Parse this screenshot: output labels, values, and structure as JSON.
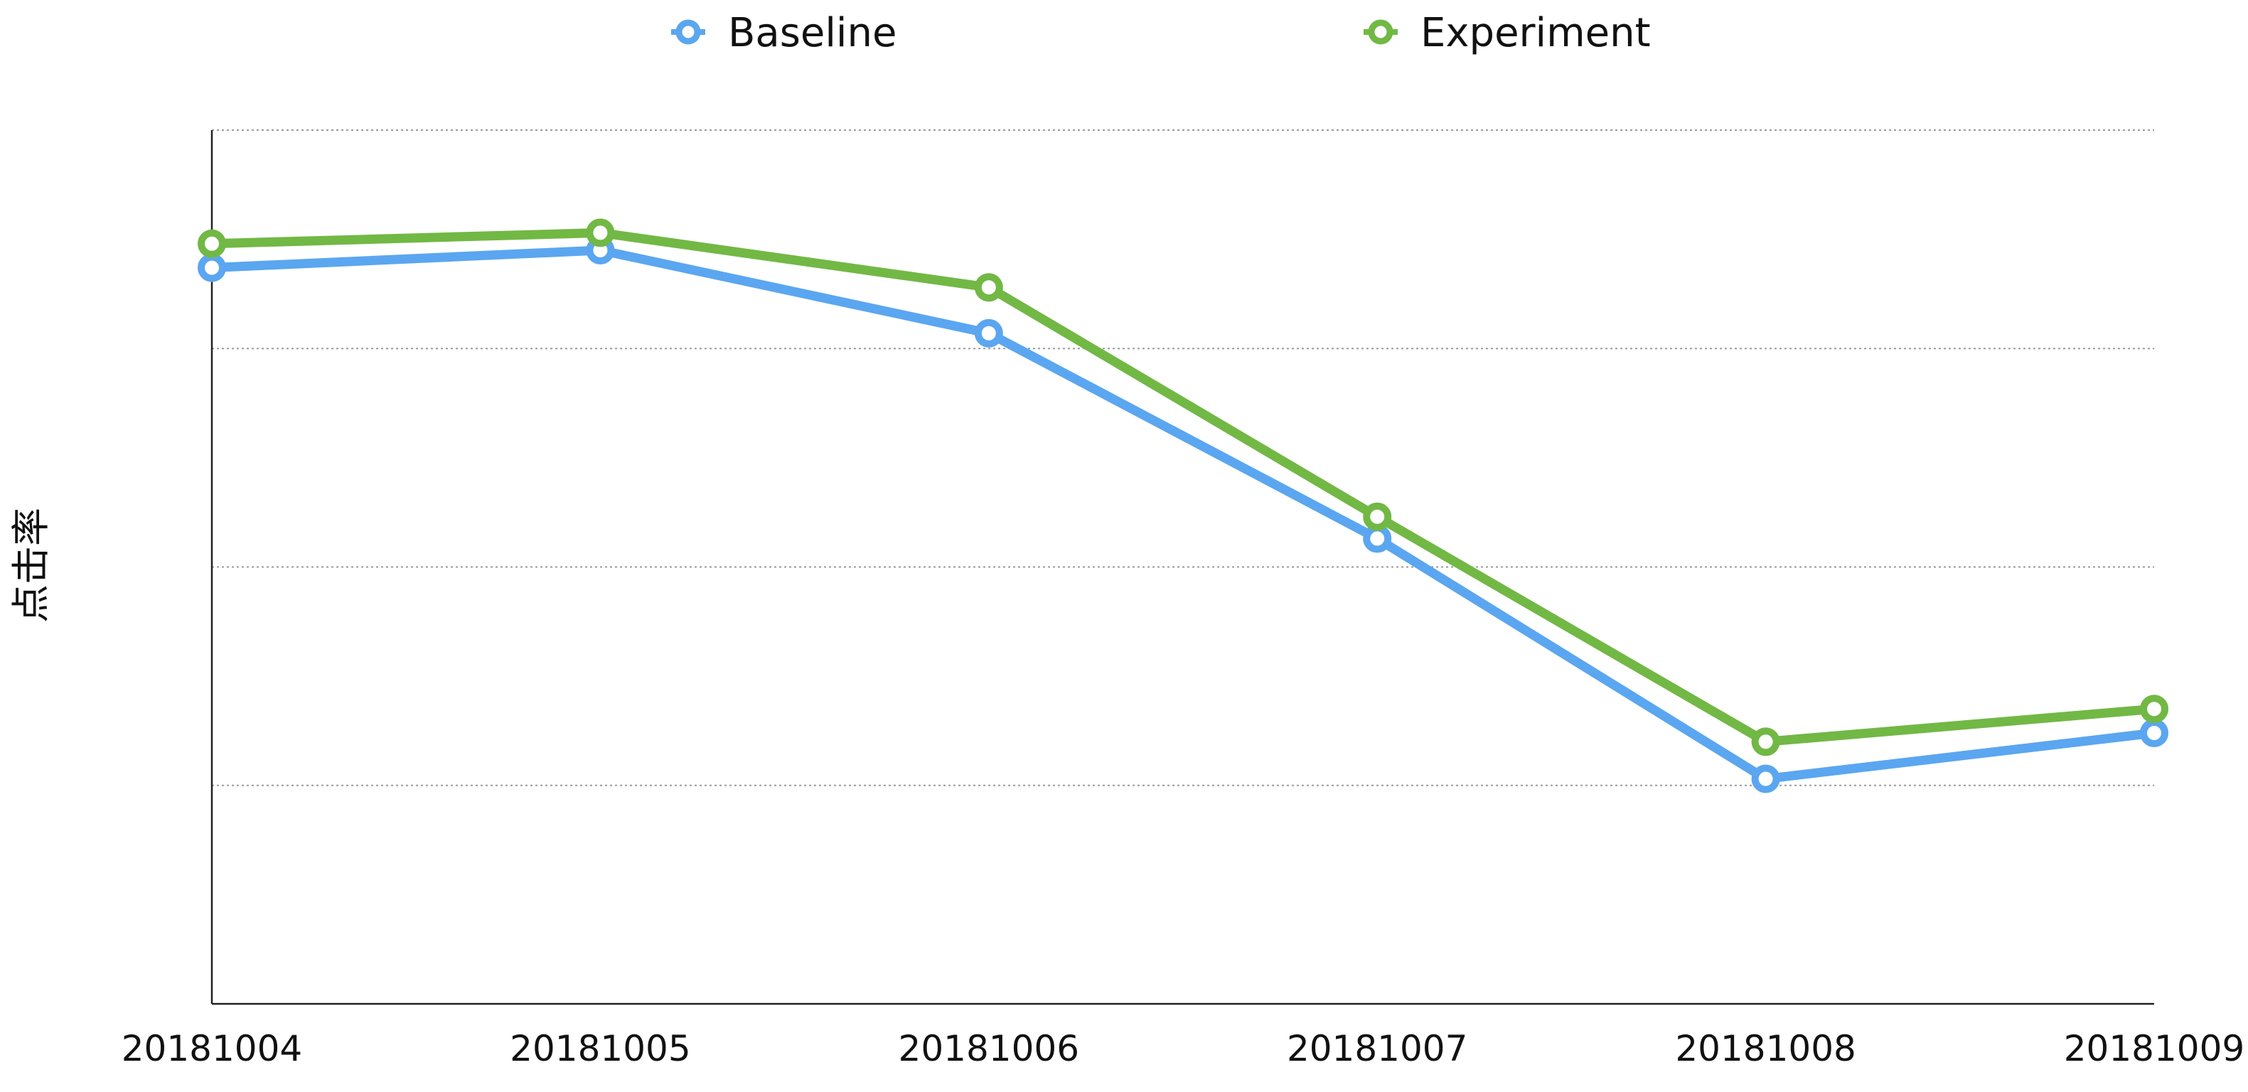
{
  "chart_data": {
    "type": "line",
    "title": "",
    "xlabel": "",
    "ylabel": "点击率",
    "categories": [
      "20181004",
      "20181005",
      "20181006",
      "20181007",
      "20181008",
      "20181009"
    ],
    "ylim": [
      0,
      4
    ],
    "y_ticks": [
      0,
      1,
      2,
      3,
      4
    ],
    "y_tick_labels_shown": false,
    "grid": "horizontal-dotted",
    "legend_position": "top",
    "series": [
      {
        "name": "Baseline",
        "color": "#5ba6f0",
        "values": [
          3.37,
          3.45,
          3.07,
          2.13,
          1.03,
          1.24
        ]
      },
      {
        "name": "Experiment",
        "color": "#72b845",
        "values": [
          3.48,
          3.53,
          3.28,
          2.23,
          1.2,
          1.35
        ]
      }
    ]
  }
}
